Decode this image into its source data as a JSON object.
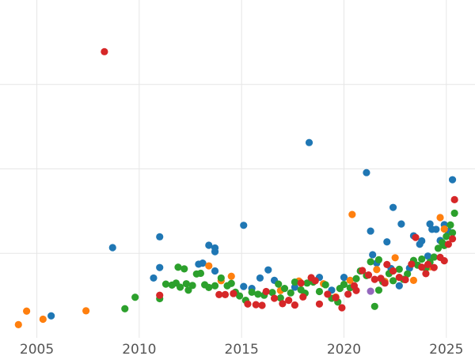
{
  "chart_data": {
    "type": "scatter",
    "title": "",
    "xlabel": "",
    "ylabel": "",
    "xlim": [
      2003.2,
      2026.4
    ],
    "ylim": [
      0,
      100
    ],
    "grid": true,
    "x_ticks": [
      2005,
      2010,
      2015,
      2020,
      2025
    ],
    "x_tick_labels": [
      "2005",
      "2010",
      "2015",
      "2020",
      "2025"
    ],
    "y_gridlines": [
      25,
      50,
      75
    ],
    "legend": null,
    "colors": {
      "blue": "#1f77b4",
      "orange": "#ff7f0e",
      "green": "#2ca02c",
      "red": "#d62728",
      "purple": "#9467bd"
    },
    "series": [
      {
        "name": "blue",
        "color": "#1f77b4",
        "points": [
          [
            2005.7,
            6.5
          ],
          [
            2008.7,
            26.7
          ],
          [
            2011.0,
            29.9
          ],
          [
            2011.0,
            20.8
          ],
          [
            2010.7,
            17.7
          ],
          [
            2012.9,
            21.8
          ],
          [
            2013.1,
            22.1
          ],
          [
            2013.4,
            27.4
          ],
          [
            2013.7,
            26.6
          ],
          [
            2013.7,
            25.5
          ],
          [
            2013.7,
            19.8
          ],
          [
            2015.1,
            33.3
          ],
          [
            2015.1,
            15.2
          ],
          [
            2015.5,
            14.6
          ],
          [
            2015.9,
            17.7
          ],
          [
            2016.3,
            20.1
          ],
          [
            2016.6,
            17.0
          ],
          [
            2018.3,
            57.8
          ],
          [
            2018.8,
            17.9
          ],
          [
            2020.0,
            17.9
          ],
          [
            2021.1,
            48.9
          ],
          [
            2021.3,
            31.6
          ],
          [
            2021.4,
            24.6
          ],
          [
            2021.6,
            22.1
          ],
          [
            2022.1,
            28.4
          ],
          [
            2022.4,
            38.6
          ],
          [
            2022.8,
            33.7
          ],
          [
            2023.4,
            30.2
          ],
          [
            2023.7,
            27.7
          ],
          [
            2023.8,
            28.7
          ],
          [
            2024.2,
            33.7
          ],
          [
            2024.3,
            32.1
          ],
          [
            2024.5,
            32.1
          ],
          [
            2024.7,
            28.8
          ],
          [
            2024.9,
            33.5
          ],
          [
            2025.1,
            31.5
          ],
          [
            2025.3,
            46.8
          ],
          [
            2022.7,
            15.4
          ],
          [
            2023.2,
            20.6
          ],
          [
            2019.4,
            14.1
          ],
          [
            2017.6,
            15.0
          ],
          [
            2022.3,
            20.5
          ],
          [
            2024.1,
            24.2
          ]
        ]
      },
      {
        "name": "orange",
        "color": "#ff7f0e",
        "points": [
          [
            2004.1,
            3.9
          ],
          [
            2004.5,
            7.9
          ],
          [
            2005.3,
            5.5
          ],
          [
            2007.4,
            8.0
          ],
          [
            2013.4,
            21.3
          ],
          [
            2014.0,
            16.9
          ],
          [
            2014.5,
            18.2
          ],
          [
            2017.8,
            16.8
          ],
          [
            2019.6,
            12.1
          ],
          [
            2020.3,
            17.0
          ],
          [
            2020.4,
            36.5
          ],
          [
            2022.0,
            16.7
          ],
          [
            2022.5,
            23.7
          ],
          [
            2023.4,
            17.0
          ],
          [
            2024.7,
            35.6
          ],
          [
            2024.9,
            32.2
          ],
          [
            2021.6,
            20.2
          ],
          [
            2019.0,
            16.0
          ],
          [
            2016.9,
            14.0
          ],
          [
            2024.2,
            21.0
          ]
        ]
      },
      {
        "name": "green",
        "color": "#2ca02c",
        "points": [
          [
            2009.3,
            8.6
          ],
          [
            2009.8,
            12.0
          ],
          [
            2011.0,
            11.6
          ],
          [
            2011.3,
            15.9
          ],
          [
            2011.6,
            15.6
          ],
          [
            2011.8,
            16.2
          ],
          [
            2011.9,
            20.9
          ],
          [
            2012.0,
            15.0
          ],
          [
            2012.2,
            20.4
          ],
          [
            2012.3,
            16.0
          ],
          [
            2012.4,
            14.1
          ],
          [
            2012.6,
            15.5
          ],
          [
            2012.8,
            18.9
          ],
          [
            2013.0,
            19.1
          ],
          [
            2013.2,
            15.7
          ],
          [
            2013.4,
            14.9
          ],
          [
            2013.7,
            15.4
          ],
          [
            2014.0,
            17.7
          ],
          [
            2014.3,
            15.4
          ],
          [
            2014.5,
            16.1
          ],
          [
            2014.7,
            13.5
          ],
          [
            2014.9,
            12.4
          ],
          [
            2015.2,
            11.1
          ],
          [
            2015.5,
            13.5
          ],
          [
            2015.8,
            12.9
          ],
          [
            2016.1,
            12.6
          ],
          [
            2016.5,
            13.4
          ],
          [
            2016.8,
            15.9
          ],
          [
            2017.1,
            14.6
          ],
          [
            2017.4,
            13.3
          ],
          [
            2017.6,
            16.5
          ],
          [
            2017.9,
            14.2
          ],
          [
            2018.2,
            16.2
          ],
          [
            2018.5,
            16.5
          ],
          [
            2018.8,
            13.7
          ],
          [
            2019.1,
            15.7
          ],
          [
            2019.4,
            11.7
          ],
          [
            2019.8,
            14.6
          ],
          [
            2020.0,
            15.8
          ],
          [
            2020.3,
            14.8
          ],
          [
            2020.6,
            17.5
          ],
          [
            2020.8,
            19.8
          ],
          [
            2021.1,
            18.4
          ],
          [
            2021.3,
            22.5
          ],
          [
            2021.5,
            9.3
          ],
          [
            2021.7,
            23.1
          ],
          [
            2021.9,
            16.6
          ],
          [
            2022.2,
            19.0
          ],
          [
            2022.4,
            16.9
          ],
          [
            2022.7,
            20.3
          ],
          [
            2022.9,
            17.3
          ],
          [
            2023.1,
            18.9
          ],
          [
            2023.4,
            22.9
          ],
          [
            2023.6,
            21.5
          ],
          [
            2023.8,
            23.3
          ],
          [
            2024.0,
            20.6
          ],
          [
            2024.2,
            22.4
          ],
          [
            2024.4,
            23.9
          ],
          [
            2024.6,
            26.5
          ],
          [
            2024.8,
            28.2
          ],
          [
            2025.0,
            30.0
          ],
          [
            2025.2,
            33.4
          ],
          [
            2025.4,
            36.9
          ],
          [
            2025.3,
            31.1
          ],
          [
            2024.9,
            27.3
          ],
          [
            2021.7,
            14.1
          ],
          [
            2016.9,
            11.8
          ],
          [
            2018.1,
            13.2
          ],
          [
            2019.7,
            10.6
          ]
        ]
      },
      {
        "name": "red",
        "color": "#d62728",
        "points": [
          [
            2008.3,
            84.7
          ],
          [
            2011.0,
            12.6
          ],
          [
            2013.9,
            12.8
          ],
          [
            2014.2,
            12.8
          ],
          [
            2014.6,
            13.1
          ],
          [
            2015.3,
            10.0
          ],
          [
            2015.7,
            9.8
          ],
          [
            2016.0,
            9.6
          ],
          [
            2016.2,
            13.7
          ],
          [
            2016.6,
            11.7
          ],
          [
            2017.0,
            10.1
          ],
          [
            2017.3,
            11.1
          ],
          [
            2017.6,
            9.7
          ],
          [
            2018.0,
            12.1
          ],
          [
            2018.4,
            17.8
          ],
          [
            2018.8,
            10.0
          ],
          [
            2019.2,
            12.9
          ],
          [
            2019.6,
            11.9
          ],
          [
            2019.9,
            8.9
          ],
          [
            2020.2,
            12.9
          ],
          [
            2020.5,
            15.4
          ],
          [
            2020.9,
            19.9
          ],
          [
            2021.2,
            18.6
          ],
          [
            2021.5,
            17.3
          ],
          [
            2021.8,
            17.6
          ],
          [
            2022.1,
            21.7
          ],
          [
            2022.4,
            19.8
          ],
          [
            2022.7,
            17.9
          ],
          [
            2023.0,
            17.2
          ],
          [
            2023.3,
            21.8
          ],
          [
            2023.5,
            29.7
          ],
          [
            2023.8,
            20.9
          ],
          [
            2024.1,
            21.7
          ],
          [
            2024.4,
            20.8
          ],
          [
            2024.7,
            23.8
          ],
          [
            2024.9,
            22.8
          ],
          [
            2025.1,
            27.7
          ],
          [
            2025.3,
            29.3
          ],
          [
            2025.4,
            40.9
          ],
          [
            2018.6,
            16.9
          ],
          [
            2017.9,
            16.2
          ],
          [
            2020.6,
            14.0
          ],
          [
            2022.0,
            16.2
          ],
          [
            2024.0,
            19.0
          ]
        ]
      },
      {
        "name": "purple",
        "color": "#9467bd",
        "points": [
          [
            2021.3,
            13.8
          ]
        ]
      }
    ]
  }
}
